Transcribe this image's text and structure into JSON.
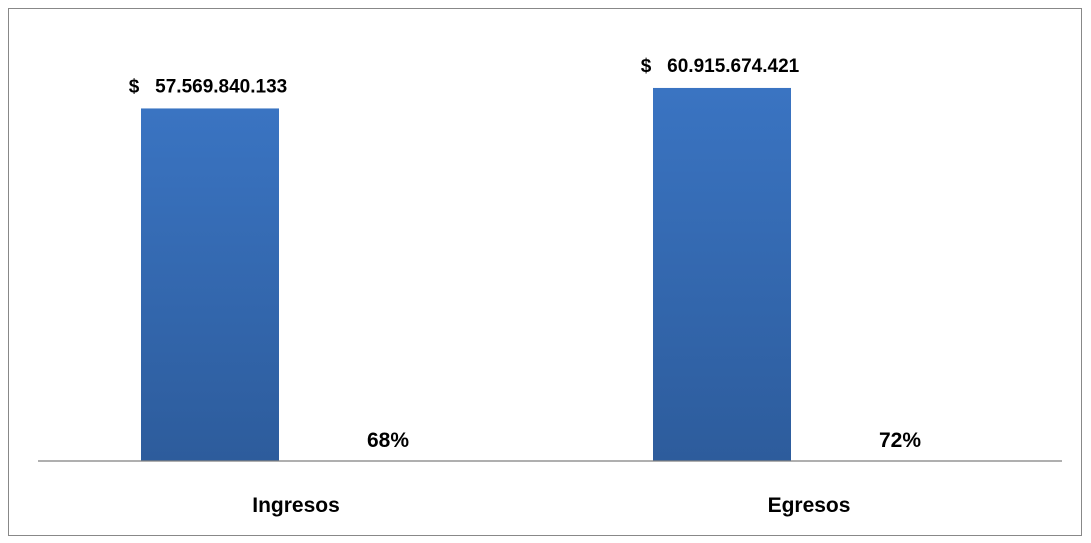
{
  "chart_data": {
    "type": "bar",
    "categories": [
      "Ingresos",
      "Egresos"
    ],
    "values": [
      57569840133,
      60915674421
    ],
    "value_labels": [
      "$   57.569.840.133",
      "$   60.915.674.421"
    ],
    "percent_labels": [
      "68%",
      "72%"
    ],
    "percent_values": [
      68,
      72
    ],
    "title": "",
    "xlabel": "",
    "ylabel": "",
    "ylim": [
      0,
      64500000000
    ],
    "grid": false,
    "legend": "none",
    "bar_color": "#3a74c2",
    "bar_color_dark": "#2d5c9c"
  }
}
